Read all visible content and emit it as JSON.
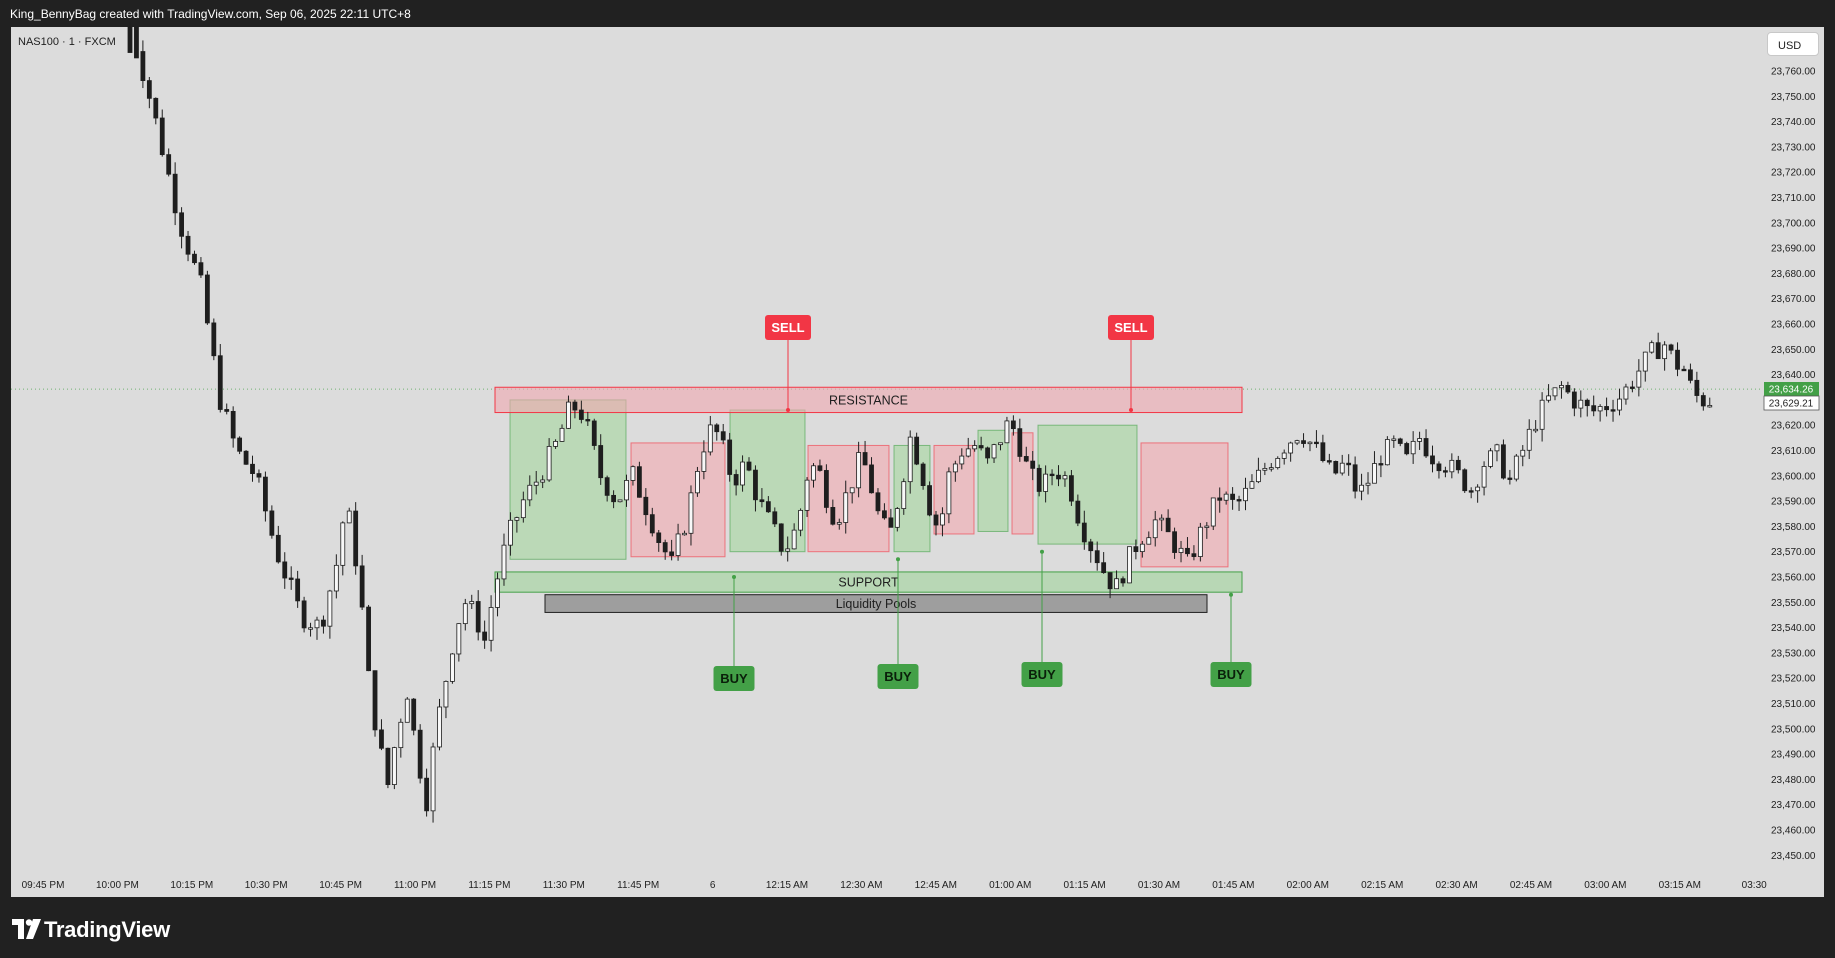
{
  "header": {
    "title": "King_BennyBag created with TradingView.com, Sep 06, 2025 22:11 UTC+8"
  },
  "legend": {
    "symbol": "NAS100 · 1 · FXCM"
  },
  "currency_button": {
    "label": "USD"
  },
  "brand": {
    "name": "TradingView",
    "logo_icon": "tradingview-logo-icon"
  },
  "colors": {
    "panel_bg": "#dcdcdc",
    "frame_bg": "#212121",
    "candle": "#1e1e1e",
    "buy": "#43a047",
    "sell": "#f23645",
    "support_fill": "#b5d8b0",
    "resistance_fill": "#ecb8bd",
    "liquidity_fill": "#9e9e9e",
    "price_tag_green": "#43a047"
  },
  "chart_data": {
    "type": "candlestick",
    "symbol": "NAS100",
    "interval": "1",
    "source": "FXCM",
    "ylim": [
      23442,
      23773
    ],
    "y_ticks": [
      "23,760.00",
      "23,750.00",
      "23,740.00",
      "23,730.00",
      "23,720.00",
      "23,710.00",
      "23,700.00",
      "23,690.00",
      "23,680.00",
      "23,670.00",
      "23,660.00",
      "23,650.00",
      "23,640.00",
      "23,630.00",
      "23,620.00",
      "23,610.00",
      "23,600.00",
      "23,590.00",
      "23,580.00",
      "23,570.00",
      "23,560.00",
      "23,550.00",
      "23,540.00",
      "23,530.00",
      "23,520.00",
      "23,510.00",
      "23,500.00",
      "23,490.00",
      "23,480.00",
      "23,470.00",
      "23,460.00",
      "23,450.00"
    ],
    "x_ticks": [
      "09:45 PM",
      "10:00 PM",
      "10:15 PM",
      "10:30 PM",
      "10:45 PM",
      "11:00 PM",
      "11:15 PM",
      "11:30 PM",
      "11:45 PM",
      "6",
      "12:15 AM",
      "12:30 AM",
      "12:45 AM",
      "01:00 AM",
      "01:15 AM",
      "01:30 AM",
      "01:45 AM",
      "02:00 AM",
      "02:15 AM",
      "02:30 AM",
      "02:45 AM",
      "03:00 AM",
      "03:15 AM",
      "03:30"
    ],
    "price_labels": [
      {
        "value": "23,634.26",
        "style": "green"
      },
      {
        "value": "23,629.21",
        "style": "outline"
      }
    ],
    "path": [
      [
        0,
        23790
      ],
      [
        20,
        23740
      ],
      [
        35,
        23700
      ],
      [
        48,
        23675
      ],
      [
        60,
        23630
      ],
      [
        70,
        23610
      ],
      [
        82,
        23600
      ],
      [
        95,
        23570
      ],
      [
        110,
        23545
      ],
      [
        122,
        23540
      ],
      [
        132,
        23565
      ],
      [
        138,
        23590
      ],
      [
        146,
        23560
      ],
      [
        152,
        23520
      ],
      [
        158,
        23495
      ],
      [
        164,
        23478
      ],
      [
        170,
        23500
      ],
      [
        176,
        23515
      ],
      [
        182,
        23490
      ],
      [
        188,
        23472
      ],
      [
        194,
        23500
      ],
      [
        200,
        23520
      ],
      [
        206,
        23540
      ],
      [
        212,
        23550
      ],
      [
        218,
        23545
      ],
      [
        224,
        23535
      ],
      [
        230,
        23555
      ],
      [
        238,
        23575
      ],
      [
        248,
        23590
      ],
      [
        258,
        23600
      ],
      [
        268,
        23612
      ],
      [
        276,
        23625
      ],
      [
        282,
        23628
      ],
      [
        288,
        23618
      ],
      [
        296,
        23600
      ],
      [
        306,
        23590
      ],
      [
        316,
        23600
      ],
      [
        326,
        23585
      ],
      [
        332,
        23575
      ],
      [
        340,
        23565
      ],
      [
        350,
        23585
      ],
      [
        358,
        23610
      ],
      [
        366,
        23620
      ],
      [
        372,
        23610
      ],
      [
        378,
        23598
      ],
      [
        386,
        23605
      ],
      [
        394,
        23590
      ],
      [
        402,
        23580
      ],
      [
        410,
        23570
      ],
      [
        418,
        23580
      ],
      [
        424,
        23600
      ],
      [
        430,
        23605
      ],
      [
        436,
        23592
      ],
      [
        442,
        23582
      ],
      [
        450,
        23595
      ],
      [
        458,
        23608
      ],
      [
        464,
        23595
      ],
      [
        470,
        23580
      ],
      [
        476,
        23578
      ],
      [
        482,
        23595
      ],
      [
        488,
        23615
      ],
      [
        494,
        23605
      ],
      [
        500,
        23588
      ],
      [
        506,
        23578
      ],
      [
        512,
        23600
      ],
      [
        520,
        23610
      ],
      [
        528,
        23612
      ],
      [
        536,
        23605
      ],
      [
        544,
        23615
      ],
      [
        550,
        23622
      ],
      [
        556,
        23612
      ],
      [
        562,
        23600
      ],
      [
        570,
        23595
      ],
      [
        578,
        23603
      ],
      [
        586,
        23598
      ],
      [
        592,
        23585
      ],
      [
        598,
        23575
      ],
      [
        604,
        23568
      ],
      [
        610,
        23560
      ],
      [
        616,
        23556
      ],
      [
        622,
        23565
      ],
      [
        630,
        23575
      ],
      [
        640,
        23582
      ],
      [
        650,
        23575
      ],
      [
        660,
        23565
      ],
      [
        670,
        23580
      ],
      [
        680,
        23592
      ],
      [
        690,
        23588
      ],
      [
        700,
        23596
      ],
      [
        710,
        23605
      ],
      [
        720,
        23612
      ],
      [
        730,
        23618
      ],
      [
        740,
        23610
      ],
      [
        750,
        23600
      ],
      [
        758,
        23605
      ],
      [
        766,
        23592
      ],
      [
        772,
        23598
      ],
      [
        780,
        23608
      ],
      [
        788,
        23612
      ],
      [
        796,
        23606
      ],
      [
        804,
        23615
      ],
      [
        812,
        23608
      ],
      [
        820,
        23605
      ],
      [
        828,
        23600
      ],
      [
        836,
        23595
      ],
      [
        844,
        23605
      ],
      [
        852,
        23608
      ],
      [
        860,
        23598
      ],
      [
        868,
        23610
      ],
      [
        876,
        23622
      ],
      [
        884,
        23630
      ],
      [
        892,
        23635
      ],
      [
        900,
        23630
      ],
      [
        910,
        23625
      ],
      [
        920,
        23628
      ],
      [
        930,
        23632
      ],
      [
        938,
        23640
      ],
      [
        944,
        23645
      ],
      [
        950,
        23650
      ],
      [
        956,
        23652
      ],
      [
        962,
        23645
      ],
      [
        968,
        23642
      ],
      [
        974,
        23632
      ],
      [
        980,
        23630
      ]
    ],
    "boxes": [
      {
        "kind": "buy",
        "t0": 0,
        "t1": 0,
        "y0": 23567,
        "y1": 23630
      },
      {
        "kind": "sell",
        "t0": 0,
        "t1": 0,
        "y0": 23568,
        "y1": 23613
      },
      {
        "kind": "buy",
        "t0": 0,
        "t1": 0,
        "y0": 23570,
        "y1": 23626
      },
      {
        "kind": "sell",
        "t0": 0,
        "t1": 0,
        "y0": 23570,
        "y1": 23612
      },
      {
        "kind": "buy",
        "t0": 0,
        "t1": 0,
        "y0": 23570,
        "y1": 23612
      },
      {
        "kind": "sell",
        "t0": 0,
        "t1": 0,
        "y0": 23577,
        "y1": 23612
      },
      {
        "kind": "buy",
        "t0": 0,
        "t1": 0,
        "y0": 23578,
        "y1": 23618
      },
      {
        "kind": "sell",
        "t0": 0,
        "t1": 0,
        "y0": 23577,
        "y1": 23617
      },
      {
        "kind": "buy",
        "t0": 0,
        "t1": 0,
        "y0": 23573,
        "y1": 23620
      },
      {
        "kind": "sell",
        "t0": 0,
        "t1": 0,
        "y0": 23564,
        "y1": 23613
      }
    ],
    "zones": [
      {
        "name": "RESISTANCE",
        "kind": "resistance",
        "y0": 23625,
        "y1": 23635
      },
      {
        "name": "SUPPORT",
        "kind": "support",
        "y0": 23554,
        "y1": 23562
      },
      {
        "name": "Liquidity Pools",
        "kind": "liquidity",
        "y0": 23546,
        "y1": 23553
      }
    ],
    "signals": [
      {
        "label": "SELL",
        "kind": "sell",
        "price": 23626
      },
      {
        "label": "SELL",
        "kind": "sell",
        "price": 23626
      },
      {
        "label": "BUY",
        "kind": "buy",
        "price": 23560
      },
      {
        "label": "BUY",
        "kind": "buy",
        "price": 23567
      },
      {
        "label": "BUY",
        "kind": "buy",
        "price": 23570
      },
      {
        "label": "BUY",
        "kind": "buy",
        "price": 23553
      }
    ]
  }
}
